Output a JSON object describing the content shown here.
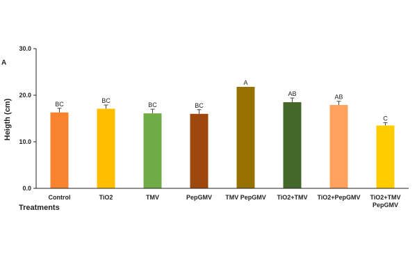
{
  "chart_data": {
    "type": "bar",
    "panel_label": "A",
    "ylabel": "Heigth (cm)",
    "xlabel": "Treatments",
    "ylim": [
      0,
      30
    ],
    "yticks": [
      "0.0",
      "10.0",
      "20.0",
      "30.0"
    ],
    "grid": false,
    "categories": [
      [
        "Control"
      ],
      [
        "TiO2"
      ],
      [
        "TMV"
      ],
      [
        "PepGMV"
      ],
      [
        "TMV PepGMV"
      ],
      [
        "TiO2+TMV"
      ],
      [
        "TiO2+PepGMV"
      ],
      [
        "TiO2+TMV",
        "PepGMV"
      ]
    ],
    "values": [
      16.3,
      17.1,
      16.1,
      16.0,
      21.8,
      18.5,
      17.9,
      13.5
    ],
    "errors": [
      0.9,
      0.8,
      0.9,
      0.9,
      0.0,
      0.9,
      0.8,
      0.6
    ],
    "significance": [
      "BC",
      "BC",
      "BC",
      "BC",
      "A",
      "AB",
      "AB",
      "C"
    ],
    "colors": [
      "#F7832E",
      "#FFBE00",
      "#6FAC46",
      "#9E480E",
      "#977100",
      "#43682A",
      "#FFA25E",
      "#FFCC00"
    ]
  }
}
